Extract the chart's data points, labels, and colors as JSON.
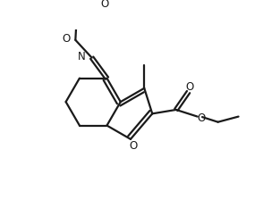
{
  "bg_color": "#ffffff",
  "line_color": "#1a1a1a",
  "line_width": 1.6,
  "figsize": [
    2.94,
    2.42
  ],
  "dpi": 100,
  "xlim": [
    0,
    10
  ],
  "ylim": [
    0,
    8.5
  ]
}
